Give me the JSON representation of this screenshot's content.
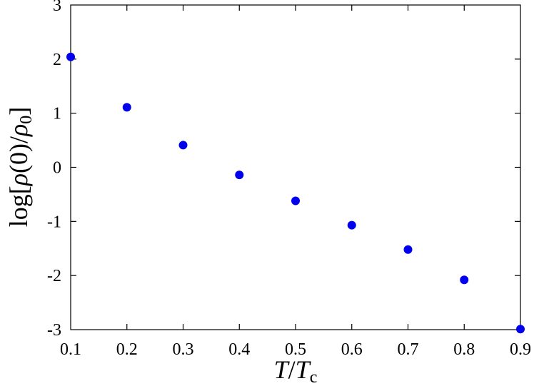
{
  "chart_data": {
    "type": "scatter",
    "xlabel": "T/Tc",
    "xlabel_main": "T",
    "xlabel_sep": "/",
    "xlabel_denom": "T",
    "xlabel_sub": "c",
    "ylabel": "log[ρ(0)/ρ0]",
    "ylabel_func": "log[",
    "ylabel_num": "ρ",
    "ylabel_arg": "(0)/",
    "ylabel_den": "ρ",
    "ylabel_sub": "0",
    "ylabel_close": "]",
    "xlim": [
      0.1,
      0.9
    ],
    "ylim": [
      -3,
      3
    ],
    "xticks": [
      "0.1",
      "0.2",
      "0.3",
      "0.4",
      "0.5",
      "0.6",
      "0.7",
      "0.8",
      "0.9"
    ],
    "yticks": [
      "-3",
      "-2",
      "-1",
      "0",
      "1",
      "2",
      "3"
    ],
    "grid": false,
    "marker_color": "#0000ee",
    "series": [
      {
        "x": [
          0.1,
          0.2,
          0.3,
          0.4,
          0.5,
          0.6,
          0.7,
          0.8,
          0.9
        ],
        "y": [
          2.04,
          1.11,
          0.41,
          -0.14,
          -0.62,
          -1.07,
          -1.52,
          -2.08,
          -2.99
        ]
      }
    ]
  }
}
